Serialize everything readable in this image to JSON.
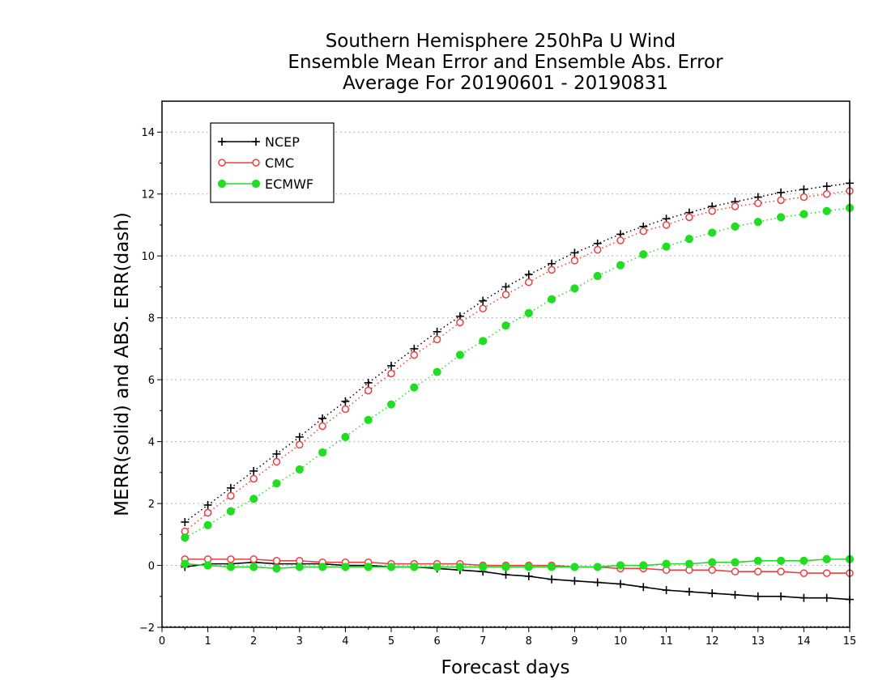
{
  "chart_data": {
    "type": "line",
    "title_lines": [
      "Southern Hemisphere 250hPa U Wind",
      "Ensemble Mean Error and Ensemble Abs. Error",
      "Average For 20190601 - 20190831"
    ],
    "xlabel": "Forecast days",
    "ylabel": "MERR(solid) and ABS. ERR(dash)",
    "xlim": [
      0,
      15
    ],
    "ylim": [
      -2,
      15
    ],
    "xticks": [
      "0",
      "1",
      "2",
      "3",
      "4",
      "5",
      "6",
      "7",
      "8",
      "9",
      "10",
      "11",
      "12",
      "13",
      "14",
      "15"
    ],
    "yticks": [
      "-2",
      "0",
      "2",
      "4",
      "6",
      "8",
      "10",
      "12",
      "14"
    ],
    "grid": "horizontal dotted",
    "legend_position": "top-left",
    "x": [
      0.5,
      1,
      1.5,
      2,
      2.5,
      3,
      3.5,
      4,
      4.5,
      5,
      5.5,
      6,
      6.5,
      7,
      7.5,
      8,
      8.5,
      9,
      9.5,
      10,
      10.5,
      11,
      11.5,
      12,
      12.5,
      13,
      13.5,
      14,
      14.5,
      15
    ],
    "series": [
      {
        "name": "NCEP",
        "color": "#000000",
        "marker": "plus",
        "abs_err": [
          1.4,
          1.95,
          2.5,
          3.05,
          3.6,
          4.15,
          4.75,
          5.3,
          5.9,
          6.45,
          7.0,
          7.55,
          8.05,
          8.55,
          9.0,
          9.4,
          9.75,
          10.1,
          10.4,
          10.7,
          10.95,
          11.2,
          11.4,
          11.6,
          11.75,
          11.9,
          12.05,
          12.15,
          12.25,
          12.35
        ],
        "mean_err": [
          -0.05,
          0.05,
          0.05,
          0.1,
          0.05,
          0.05,
          0.05,
          0.0,
          0.0,
          -0.05,
          -0.05,
          -0.1,
          -0.15,
          -0.2,
          -0.3,
          -0.35,
          -0.45,
          -0.5,
          -0.55,
          -0.6,
          -0.7,
          -0.8,
          -0.85,
          -0.9,
          -0.95,
          -1.0,
          -1.0,
          -1.05,
          -1.05,
          -1.1
        ]
      },
      {
        "name": "CMC",
        "color": "#e84040",
        "marker": "open-circle",
        "abs_err": [
          1.1,
          1.7,
          2.25,
          2.8,
          3.35,
          3.9,
          4.5,
          5.05,
          5.65,
          6.2,
          6.8,
          7.3,
          7.85,
          8.3,
          8.75,
          9.15,
          9.55,
          9.85,
          10.2,
          10.5,
          10.8,
          11.0,
          11.25,
          11.45,
          11.6,
          11.7,
          11.8,
          11.9,
          12.0,
          12.1
        ],
        "mean_err": [
          0.2,
          0.2,
          0.2,
          0.2,
          0.15,
          0.15,
          0.1,
          0.1,
          0.1,
          0.05,
          0.05,
          0.05,
          0.05,
          0.0,
          0.0,
          0.0,
          0.0,
          -0.05,
          -0.05,
          -0.1,
          -0.1,
          -0.15,
          -0.15,
          -0.15,
          -0.2,
          -0.2,
          -0.2,
          -0.25,
          -0.25,
          -0.25
        ]
      },
      {
        "name": "ECMWF",
        "color": "#22dd22",
        "marker": "filled-circle",
        "abs_err": [
          0.9,
          1.3,
          1.75,
          2.15,
          2.65,
          3.1,
          3.65,
          4.15,
          4.7,
          5.2,
          5.75,
          6.25,
          6.8,
          7.25,
          7.75,
          8.15,
          8.6,
          8.95,
          9.35,
          9.7,
          10.05,
          10.3,
          10.55,
          10.75,
          10.95,
          11.1,
          11.25,
          11.35,
          11.45,
          11.55
        ],
        "mean_err": [
          0.05,
          0.0,
          -0.05,
          -0.05,
          -0.1,
          -0.05,
          -0.05,
          -0.05,
          -0.05,
          -0.05,
          -0.05,
          -0.05,
          -0.05,
          -0.05,
          -0.05,
          -0.05,
          -0.05,
          -0.05,
          -0.05,
          0.0,
          0.0,
          0.05,
          0.05,
          0.1,
          0.1,
          0.15,
          0.15,
          0.15,
          0.2,
          0.2
        ]
      }
    ]
  }
}
